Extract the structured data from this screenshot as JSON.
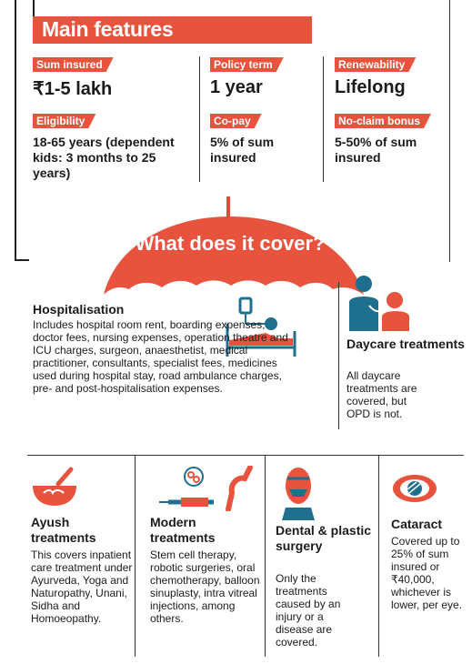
{
  "main_title": "Main features",
  "features": [
    {
      "label": "Sum insured",
      "value": "₹1-5 lakh"
    },
    {
      "label": "Policy term",
      "value": "1 year"
    },
    {
      "label": "Renewability",
      "value": "Lifelong"
    },
    {
      "label": "Eligibility",
      "value": "18-65 years (dependent kids: 3 months to 25 years)"
    },
    {
      "label": "Co-pay",
      "value": "5% of sum insured"
    },
    {
      "label": "No-claim bonus",
      "value": "5-50% of sum insured"
    }
  ],
  "umbrella_title": "What does it cover?",
  "hospitalisation": {
    "title": "Hospitalisation",
    "text": "Includes hospital room rent, boarding expenses, doctor fees, nursing expenses, operation theatre and ICU charges, surgeon, anaesthetist, medical practitioner, consultants, specialist fees, medicines used during hospital stay, road ambulance charges, pre- and post-hospitalisation expenses."
  },
  "daycare": {
    "title": "Daycare treatments",
    "text": "All daycare treatments are covered, but OPD is not."
  },
  "bottom": [
    {
      "title": "Ayush treatments",
      "text": "This covers inpatient care treatment under Ayurveda, Yoga and Naturopathy, Unani, Sidha and Homoeopathy."
    },
    {
      "title": "Modern treatments",
      "text": "Stem cell therapy, robotic surgeries, oral chemotherapy, balloon sinuplasty, intra vitreal injections, among others."
    },
    {
      "title": "Dental & plastic surgery",
      "text": "Only the treatments caused by an injury or a disease are covered."
    },
    {
      "title": "Cataract",
      "text": "Covered up to 25% of sum insured or ₹40,000, whichever is lower, per eye."
    }
  ],
  "colors": {
    "accent": "#e8533d",
    "icon_blue": "#1f6f8f"
  },
  "icons": [
    "bed-patient-icon",
    "doctor-patient-icon",
    "mortar-pestle-icon",
    "syringe-knee-icon",
    "face-mask-icon",
    "eye-icon",
    "umbrella-icon"
  ]
}
